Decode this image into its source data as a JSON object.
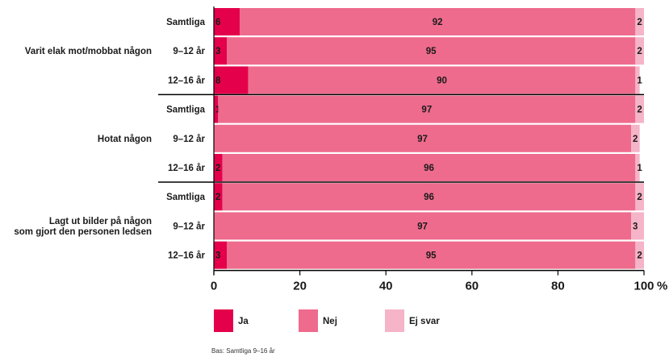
{
  "chart_data": {
    "type": "bar",
    "orientation": "horizontal",
    "stacked": true,
    "unit": "%",
    "xlim": [
      0,
      100
    ],
    "xticks": [
      "0",
      "20",
      "40",
      "60",
      "80",
      "100"
    ],
    "series_names": [
      "Ja",
      "Nej",
      "Ej svar"
    ],
    "colors": {
      "Ja": "#e4004b",
      "Nej": "#ee6b8d",
      "Ej svar": "#f5b4c7"
    },
    "groups": [
      {
        "label": [
          "Varit elak mot/mobbat någon"
        ],
        "rows": [
          {
            "label": "Samtliga",
            "values": [
              6,
              92,
              2
            ]
          },
          {
            "label": "9–12 år",
            "values": [
              3,
              95,
              2
            ]
          },
          {
            "label": "12–16 år",
            "values": [
              8,
              90,
              1
            ]
          }
        ]
      },
      {
        "label": [
          "Hotat någon"
        ],
        "rows": [
          {
            "label": "Samtliga",
            "values": [
              1,
              97,
              2
            ]
          },
          {
            "label": "9–12 år",
            "values": [
              null,
              97,
              2
            ]
          },
          {
            "label": "12–16 år",
            "values": [
              2,
              96,
              1
            ]
          }
        ]
      },
      {
        "label": [
          "Lagt ut bilder på någon",
          "som gjort den personen ledsen"
        ],
        "rows": [
          {
            "label": "Samtliga",
            "values": [
              2,
              96,
              2
            ]
          },
          {
            "label": "9–12 år",
            "values": [
              null,
              97,
              3
            ]
          },
          {
            "label": "12–16 år",
            "values": [
              3,
              95,
              2
            ]
          }
        ]
      }
    ],
    "legend": [
      "Ja",
      "Nej",
      "Ej svar"
    ],
    "legend_position": "bottom",
    "grid": false
  },
  "axis": {
    "percent_sign": "%"
  },
  "footnote": "Bas: Samtliga 9–16 år"
}
